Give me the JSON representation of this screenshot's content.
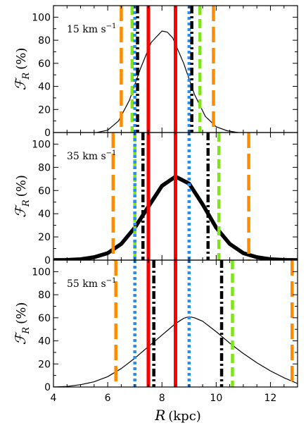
{
  "colors": {
    "orange": "#ff8c00",
    "green": "#7fe51a",
    "black": "#000000",
    "red": "#ff0000",
    "blue": "#1e90ff"
  },
  "chart_data": {
    "type": "line",
    "xlabel_symbol": "R",
    "xlabel_unit": "(kpc)",
    "ylabel_symbol": "ℱ",
    "ylabel_sub": "R",
    "ylabel_unit": "(%)",
    "xlim": [
      4,
      13
    ],
    "ylim": [
      0,
      110
    ],
    "xticks": [
      4,
      6,
      8,
      10,
      12
    ],
    "yticks": [
      0,
      20,
      40,
      60,
      80,
      100
    ],
    "grid": false,
    "panels": [
      {
        "label_value": "15",
        "label_unit": "km s",
        "label_exp": "−1",
        "curve_width": "thin",
        "curve": {
          "x": [
            5.6,
            6.0,
            6.4,
            6.8,
            7.2,
            7.6,
            8.0,
            8.2,
            8.4,
            8.8,
            9.2,
            9.6,
            10.0,
            10.4,
            10.8
          ],
          "y": [
            0,
            2,
            10,
            28,
            55,
            78,
            88,
            87,
            82,
            60,
            33,
            14,
            5,
            1.5,
            0
          ]
        },
        "vlines": [
          {
            "name": "orange-left",
            "color": "orange",
            "style": "longdash",
            "x": 6.5
          },
          {
            "name": "green-left",
            "color": "green",
            "style": "dash",
            "x": 6.9
          },
          {
            "name": "blue-left",
            "color": "blue",
            "style": "dot",
            "x": 7.0
          },
          {
            "name": "black-left",
            "color": "black",
            "style": "dashdot",
            "x": 7.1
          },
          {
            "name": "red-left",
            "color": "red",
            "style": "solid",
            "x": 7.5
          },
          {
            "name": "red-right",
            "color": "red",
            "style": "solid",
            "x": 8.5
          },
          {
            "name": "blue-right",
            "color": "blue",
            "style": "dot",
            "x": 9.0
          },
          {
            "name": "black-right",
            "color": "black",
            "style": "dashdot",
            "x": 9.1
          },
          {
            "name": "green-right",
            "color": "green",
            "style": "dash",
            "x": 9.4
          },
          {
            "name": "orange-right",
            "color": "orange",
            "style": "longdash",
            "x": 9.9
          }
        ]
      },
      {
        "label_value": "35",
        "label_unit": "km s",
        "label_exp": "−1",
        "curve_width": "thick",
        "curve": {
          "x": [
            4.0,
            4.5,
            5.0,
            5.5,
            6.0,
            6.5,
            7.0,
            7.5,
            8.0,
            8.5,
            9.0,
            9.5,
            10.0,
            10.5,
            11.0,
            11.5,
            12.0,
            12.5,
            13.0
          ],
          "y": [
            0,
            0.2,
            0.8,
            2.5,
            6,
            14,
            28,
            46,
            64,
            72,
            66,
            48,
            28,
            14,
            6,
            2.5,
            0.8,
            0.2,
            0
          ]
        },
        "vlines": [
          {
            "name": "orange-left",
            "color": "orange",
            "style": "longdash",
            "x": 6.2
          },
          {
            "name": "green-left",
            "color": "green",
            "style": "dash",
            "x": 7.0
          },
          {
            "name": "blue-left",
            "color": "blue",
            "style": "dot",
            "x": 7.0
          },
          {
            "name": "black-left",
            "color": "black",
            "style": "dashdot",
            "x": 7.3
          },
          {
            "name": "red-left",
            "color": "red",
            "style": "solid",
            "x": 7.5
          },
          {
            "name": "red-right",
            "color": "red",
            "style": "solid",
            "x": 8.5
          },
          {
            "name": "blue-right",
            "color": "blue",
            "style": "dot",
            "x": 9.0
          },
          {
            "name": "black-right",
            "color": "black",
            "style": "dashdot",
            "x": 9.7
          },
          {
            "name": "green-right",
            "color": "green",
            "style": "dash",
            "x": 10.1
          },
          {
            "name": "orange-right",
            "color": "orange",
            "style": "longdash",
            "x": 11.2
          }
        ]
      },
      {
        "label_value": "55",
        "label_unit": "km s",
        "label_exp": "−1",
        "curve_width": "thin",
        "curve": {
          "x": [
            4.0,
            4.5,
            5.0,
            5.5,
            6.0,
            6.5,
            7.0,
            7.5,
            8.0,
            8.5,
            8.8,
            9.0,
            9.2,
            9.5,
            10.0,
            10.5,
            11.0,
            11.5,
            12.0,
            12.5,
            13.0
          ],
          "y": [
            0,
            0.5,
            2,
            4.5,
            9,
            16,
            25,
            35,
            45,
            55,
            59.5,
            61,
            60,
            57,
            48,
            38,
            29,
            21,
            14,
            8,
            3
          ]
        },
        "vlines": [
          {
            "name": "orange-left",
            "color": "orange",
            "style": "longdash",
            "x": 6.3
          },
          {
            "name": "blue-left",
            "color": "blue",
            "style": "dot",
            "x": 7.0
          },
          {
            "name": "green-left",
            "color": "green",
            "style": "dash",
            "x": 7.5
          },
          {
            "name": "red-left",
            "color": "red",
            "style": "solid",
            "x": 7.5
          },
          {
            "name": "black-left",
            "color": "black",
            "style": "dashdot",
            "x": 7.7
          },
          {
            "name": "red-right",
            "color": "red",
            "style": "solid",
            "x": 8.5
          },
          {
            "name": "blue-right",
            "color": "blue",
            "style": "dot",
            "x": 9.0
          },
          {
            "name": "black-right",
            "color": "black",
            "style": "dashdot",
            "x": 10.2
          },
          {
            "name": "green-right",
            "color": "green",
            "style": "dash",
            "x": 10.6
          },
          {
            "name": "orange-right",
            "color": "orange",
            "style": "longdash",
            "x": 12.8
          }
        ]
      }
    ]
  }
}
